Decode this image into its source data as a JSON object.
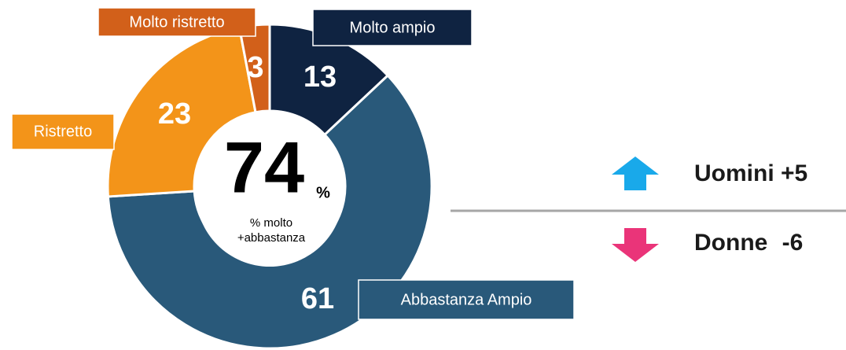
{
  "chart_data": {
    "type": "donut",
    "categories": [
      "Molto ampio",
      "Abbastanza Ampio",
      "Ristretto",
      "Molto ristretto"
    ],
    "values": [
      13,
      61,
      23,
      3
    ],
    "colors": [
      "#0f2341",
      "#29597a",
      "#f39419",
      "#d2601a"
    ],
    "center_value": 74,
    "center_unit": "%",
    "center_label": [
      "% molto",
      "+abbastanza"
    ],
    "comparisons": [
      {
        "name": "Uomini",
        "value": 5,
        "value_label": "+5",
        "direction": "up",
        "color": "#19a9ea"
      },
      {
        "name": "Donne",
        "value": -6,
        "value_label": "-6",
        "direction": "down",
        "color": "#ea3479"
      }
    ]
  }
}
